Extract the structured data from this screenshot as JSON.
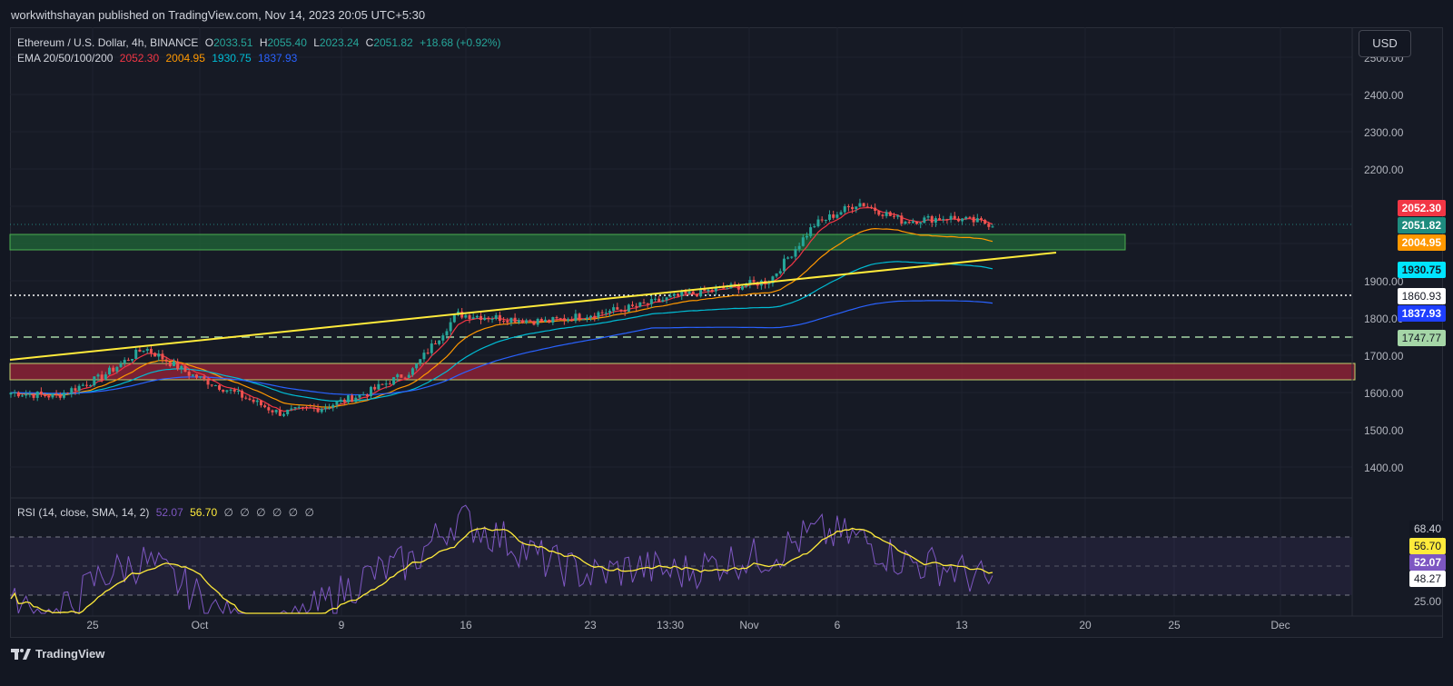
{
  "header": {
    "published_text": "workwithshayan published on TradingView.com, Nov 14, 2023 20:05 UTC+5:30"
  },
  "ohlc": {
    "symbol": "Ethereum / U.S. Dollar, 4h, BINANCE",
    "o_label": "O",
    "o": "2033.51",
    "h_label": "H",
    "h": "2055.40",
    "l_label": "L",
    "l": "2023.24",
    "c_label": "C",
    "c": "2051.82",
    "change": "+18.68 (+0.92%)"
  },
  "ema": {
    "label": "EMA 20/50/100/200",
    "v20": "2052.30",
    "v50": "2004.95",
    "v100": "1930.75",
    "v200": "1837.93"
  },
  "rsi": {
    "label": "RSI (14, close, SMA, 14, 2)",
    "rsi_value": "52.07",
    "sma_value": "56.70",
    "extras": [
      "∅",
      "∅",
      "∅",
      "∅",
      "∅",
      "∅"
    ]
  },
  "currency_button": "USD",
  "price_axis": {
    "ticks": [
      "2500.00",
      "2400.00",
      "2300.00",
      "2200.00",
      "1900.00",
      "1800.00",
      "1700.00",
      "1600.00",
      "1500.00",
      "1400.00"
    ]
  },
  "price_labels": {
    "ema20": "2052.30",
    "close": "2051.82",
    "ema50": "2004.95",
    "ema100": "1930.75",
    "level_dotted": "1860.93",
    "ema200": "1837.93",
    "level_dashed": "1747.77"
  },
  "rsi_axis": {
    "upper": "68.40",
    "sma": "56.70",
    "rsi": "52.07",
    "lower": "48.27",
    "min": "25.00"
  },
  "time_axis": [
    "25",
    "Oct",
    "9",
    "16",
    "23",
    "13:30",
    "Nov",
    "6",
    "13",
    "20",
    "25",
    "Dec"
  ],
  "footer": {
    "brand": "TradingView"
  },
  "colors": {
    "ema20": "#f23645",
    "ema50": "#ff9800",
    "ema100": "#00bcd4",
    "ema200": "#2962ff",
    "up": "#26a69a",
    "down": "#ef5350",
    "rsi": "#7e57c2",
    "rsi_sma": "#ffeb3b",
    "close_label": "#26a69a",
    "level_dashed": "#a5d6a7"
  },
  "chart_data": {
    "type": "candlestick",
    "symbol": "ETHUSD",
    "timeframe": "4h",
    "x": [
      "Sep 21",
      "Sep 25",
      "Sep 29",
      "Oct 1",
      "Oct 5",
      "Oct 9",
      "Oct 12",
      "Oct 16",
      "Oct 19",
      "Oct 22",
      "Oct 23",
      "Oct 24",
      "Oct 26",
      "Oct 29",
      "Nov 1",
      "Nov 3",
      "Nov 6",
      "Nov 8",
      "Nov 9",
      "Nov 10",
      "Nov 12",
      "Nov 13",
      "Nov 14"
    ],
    "close": [
      1600,
      1590,
      1640,
      1720,
      1650,
      1600,
      1545,
      1560,
      1600,
      1660,
      1810,
      1800,
      1790,
      1810,
      1830,
      1860,
      1880,
      1900,
      2050,
      2110,
      2060,
      2070,
      2052
    ],
    "ema_series": [
      {
        "name": "EMA 20",
        "last": 2052.3
      },
      {
        "name": "EMA 50",
        "last": 2004.95
      },
      {
        "name": "EMA 100",
        "last": 1930.75
      },
      {
        "name": "EMA 200",
        "last": 1837.93
      }
    ],
    "levels": [
      1860.93,
      1747.77
    ],
    "zones": [
      {
        "from": 1955,
        "to": 2000,
        "color": "green"
      },
      {
        "from": 1635,
        "to": 1680,
        "color": "red"
      }
    ],
    "ylim": [
      1350,
      2520
    ],
    "rsi": {
      "values": [
        45,
        40,
        55,
        60,
        50,
        38,
        35,
        45,
        55,
        60,
        75,
        68,
        60,
        55,
        58,
        56,
        60,
        62,
        70,
        68,
        60,
        58,
        52
      ],
      "sma_last": 56.7,
      "ylim": [
        25,
        75
      ]
    }
  }
}
